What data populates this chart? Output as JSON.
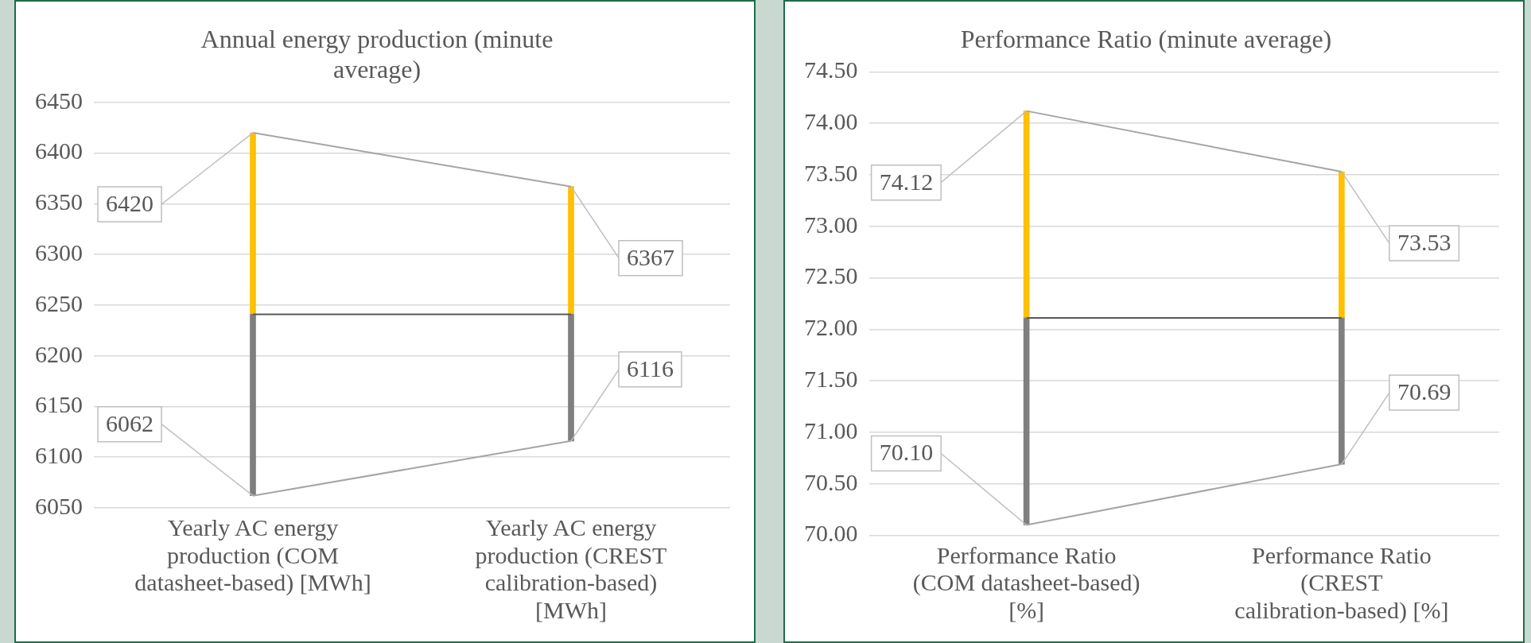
{
  "chart_data": [
    {
      "type": "bar",
      "title": "Annual energy production (minute average)",
      "categories": [
        "Yearly AC energy production (COM datasheet-based) [MWh]",
        "Yearly AC energy production (CREST calibration-based) [MWh]"
      ],
      "series": [
        {
          "color": "#7f7f7f",
          "values": [
            179,
            125
          ],
          "base": [
            6062,
            6116
          ]
        },
        {
          "color": "#ffc000",
          "values": [
            179,
            126
          ],
          "base": [
            6241,
            6241
          ]
        },
        {
          "type": "line",
          "color": "#a5a5a5",
          "values": [
            6420,
            6367
          ],
          "value_labels": [
            "6420",
            "6367"
          ]
        },
        {
          "type": "line",
          "color": "#595959",
          "values": [
            6241,
            6241
          ]
        },
        {
          "type": "line",
          "color": "#a5a5a5",
          "values": [
            6062,
            6116
          ],
          "value_labels": [
            "6062",
            "6116"
          ]
        }
      ],
      "ylim": [
        6050,
        6450
      ],
      "yticks": [
        6050,
        6100,
        6150,
        6200,
        6250,
        6300,
        6350,
        6400,
        6450
      ],
      "grid": "y",
      "legend": false,
      "marker": "none"
    },
    {
      "type": "bar",
      "title": "Performance Ratio (minute average)",
      "categories": [
        "Performance Ratio (COM datasheet-based) [%]",
        "Performance Ratio (CREST calibration-based) [%]"
      ],
      "series": [
        {
          "color": "#7f7f7f",
          "values": [
            2.01,
            1.42
          ],
          "base": [
            70.1,
            70.69
          ]
        },
        {
          "color": "#ffc000",
          "values": [
            2.01,
            1.42
          ],
          "base": [
            72.11,
            72.11
          ]
        },
        {
          "type": "line",
          "color": "#a5a5a5",
          "values": [
            74.12,
            73.53
          ],
          "value_labels": [
            "74.12",
            "73.53"
          ]
        },
        {
          "type": "line",
          "color": "#595959",
          "values": [
            72.11,
            72.11
          ]
        },
        {
          "type": "line",
          "color": "#a5a5a5",
          "values": [
            70.1,
            70.69
          ],
          "value_labels": [
            "70.10",
            "70.69"
          ]
        }
      ],
      "ylim": [
        70,
        74.5
      ],
      "yticks": [
        {
          "value": 70,
          "label": "70.00"
        },
        {
          "value": 70.5,
          "label": "70.50"
        },
        {
          "value": 71,
          "label": "71.00"
        },
        {
          "value": 71.5,
          "label": "71.50"
        },
        {
          "value": 72,
          "label": "72.00"
        },
        {
          "value": 72.5,
          "label": "72.50"
        },
        {
          "value": 73,
          "label": "73.00"
        },
        {
          "value": 73.5,
          "label": "73.50"
        },
        {
          "value": 74,
          "label": "74.00"
        },
        {
          "value": 74.5,
          "label": "74.50"
        }
      ],
      "grid": "y",
      "legend": false,
      "marker": "none"
    }
  ]
}
